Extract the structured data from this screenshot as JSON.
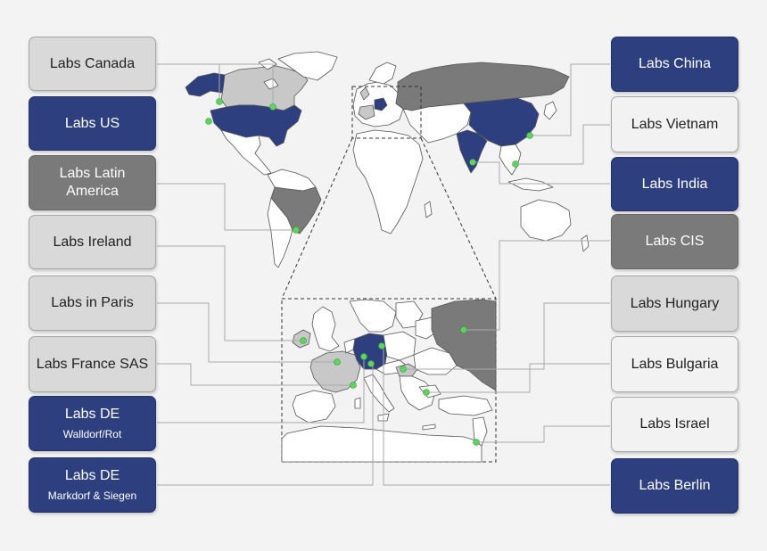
{
  "left_labels": [
    {
      "id": "canada",
      "line1": "Labs Canada",
      "line2": "",
      "style": "lgray"
    },
    {
      "id": "us",
      "line1": "Labs US",
      "line2": "",
      "style": "blue"
    },
    {
      "id": "latin",
      "line1": "Labs Latin",
      "line2": "America",
      "style": "dgray"
    },
    {
      "id": "ireland",
      "line1": "Labs Ireland",
      "line2": "",
      "style": "lgray"
    },
    {
      "id": "paris",
      "line1": "Labs in Paris",
      "line2": "",
      "style": "lgray"
    },
    {
      "id": "france-sas",
      "line1": "Labs France SAS",
      "line2": "",
      "style": "lgray"
    },
    {
      "id": "de-walldorf",
      "line1": "Labs DE",
      "line2": "Walldorf/Rot",
      "style": "blue"
    },
    {
      "id": "de-markdorf",
      "line1": "Labs DE",
      "line2": "Markdorf & Siegen",
      "style": "blue"
    }
  ],
  "right_labels": [
    {
      "id": "china",
      "line1": "Labs China",
      "line2": "",
      "style": "blue"
    },
    {
      "id": "vietnam",
      "line1": "Labs Vietnam",
      "line2": "",
      "style": "white"
    },
    {
      "id": "india",
      "line1": "Labs India",
      "line2": "",
      "style": "blue"
    },
    {
      "id": "cis",
      "line1": "Labs CIS",
      "line2": "",
      "style": "dgray"
    },
    {
      "id": "hungary",
      "line1": "Labs Hungary",
      "line2": "",
      "style": "lgray"
    },
    {
      "id": "bulgaria",
      "line1": "Labs Bulgaria",
      "line2": "",
      "style": "white"
    },
    {
      "id": "israel",
      "line1": "Labs Israel",
      "line2": "",
      "style": "white"
    },
    {
      "id": "berlin",
      "line1": "Labs Berlin",
      "line2": "",
      "style": "blue"
    }
  ],
  "colors": {
    "blue": "#2e3f80",
    "dark_gray": "#7a7a7a",
    "light_gray": "#c8c8c8",
    "land": "#ffffff",
    "border": "#555555",
    "marker": "#5fd35f",
    "connector": "#a8a8a8"
  }
}
